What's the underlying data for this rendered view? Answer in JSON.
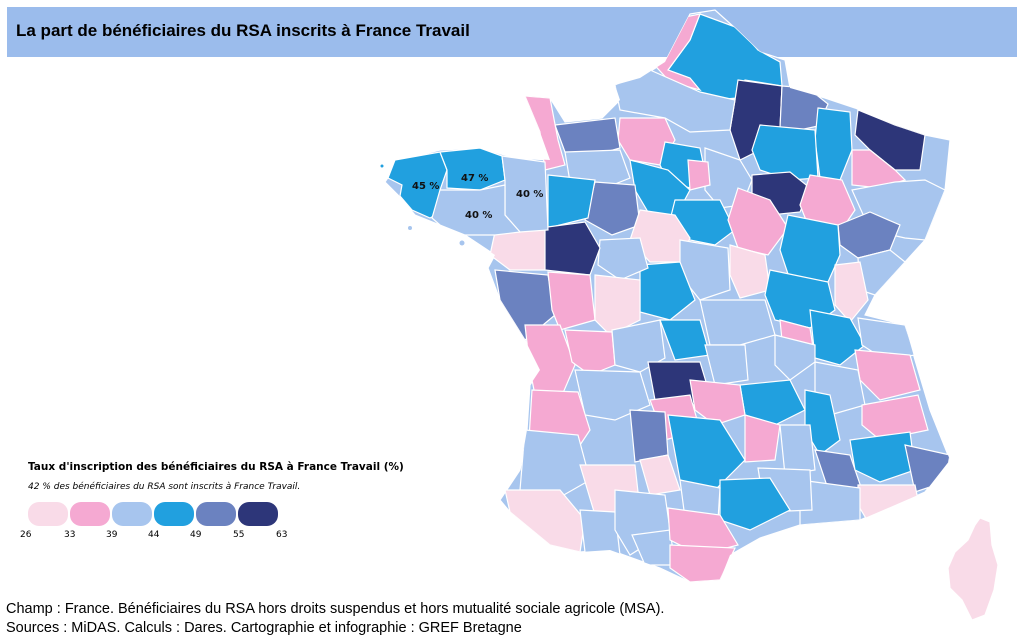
{
  "title": "La part de bénéficiaires du RSA inscrits à France Travail",
  "colors": {
    "title_bar": "#9bbcec",
    "class_1": "#f9dbe8",
    "class_2": "#f5a9d2",
    "class_3": "#a7c5ee",
    "class_4": "#21a0df",
    "class_5": "#6b82c0",
    "class_6": "#2d3679"
  },
  "map_labels": [
    {
      "text": "45 %",
      "region": "finistere"
    },
    {
      "text": "47 %",
      "region": "cotes-darmor"
    },
    {
      "text": "40 %",
      "region": "ille-et-vilaine"
    },
    {
      "text": "40 %",
      "region": "morbihan"
    }
  ],
  "legend": {
    "title": "Taux d'inscription des bénéficiaires du RSA à France Travail (%)",
    "note": "42 % des bénéficiaires du RSA sont inscrits à France Travail.",
    "ticks": [
      "26",
      "33",
      "39",
      "44",
      "49",
      "55",
      "63"
    ]
  },
  "footer": {
    "line1": "Champ : France. Bénéficiaires du RSA hors droits suspendus et hors mutualité sociale agricole (MSA).",
    "line2": "Sources : MiDAS. Calculs : Dares. Cartographie et infographie : GREF Bretagne"
  }
}
